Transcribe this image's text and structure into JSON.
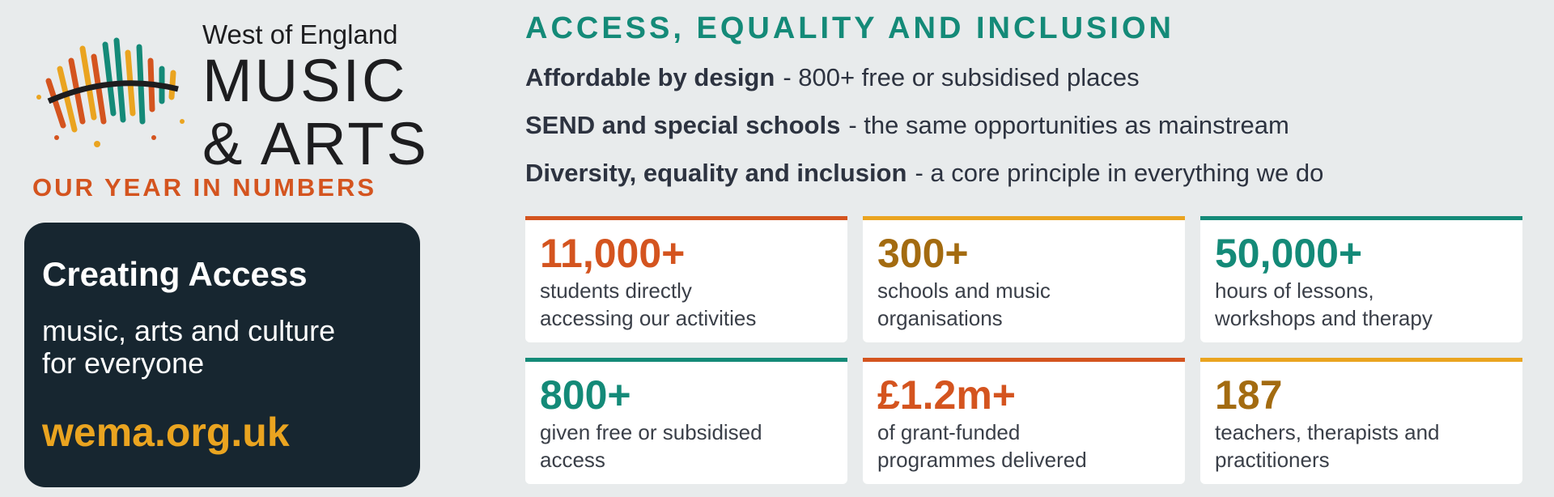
{
  "logo": {
    "line1": "West of England",
    "line2": "MUSIC",
    "line3": "& ARTS"
  },
  "subtitle": "OUR YEAR IN NUMBERS",
  "box": {
    "title": "Creating Access",
    "text": [
      "music, arts and culture",
      "for everyone"
    ],
    "url": "wema.org.uk"
  },
  "section": {
    "title": "ACCESS, EQUALITY AND INCLUSION",
    "points": [
      {
        "bold": "Affordable by design",
        "rest": "- 800+ free or subsidised places"
      },
      {
        "bold": "SEND and special schools",
        "rest": "- the same opportunities as mainstream"
      },
      {
        "bold": "Diversity, equality and inclusion",
        "rest": "- a core principle in everything we do"
      }
    ]
  },
  "stats": [
    {
      "value": "11,000+",
      "desc": [
        "students directly",
        "accessing our activities"
      ]
    },
    {
      "value": "300+",
      "desc": [
        "schools and music",
        "organisations"
      ]
    },
    {
      "value": "50,000+",
      "desc": [
        "hours of lessons,",
        "workshops and therapy"
      ]
    },
    {
      "value": "800+",
      "desc": [
        "given free or subsidised",
        "access"
      ]
    },
    {
      "value": "£1.2m+",
      "desc": [
        "of grant-funded",
        "programmes delivered"
      ]
    },
    {
      "value": "187",
      "desc": [
        "teachers, therapists and",
        "practitioners"
      ]
    }
  ]
}
